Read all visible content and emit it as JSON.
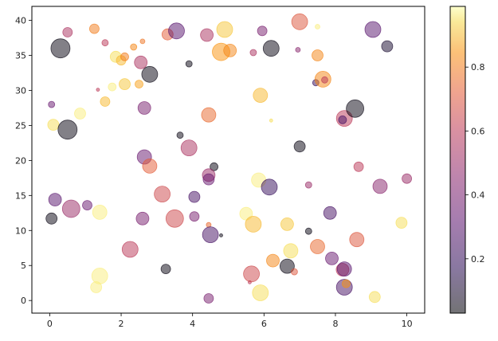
{
  "chart_data": {
    "type": "scatter",
    "title": "",
    "xlabel": "",
    "ylabel": "",
    "xlim": [
      -0.5,
      10.5
    ],
    "ylim": [
      -1.8,
      42.0
    ],
    "xticks": [
      0,
      2,
      4,
      6,
      8,
      10
    ],
    "yticks": [
      0,
      5,
      10,
      15,
      20,
      25,
      30,
      35,
      40
    ],
    "colorbar": {
      "colormap": "inferno",
      "range": [
        0.03,
        0.99
      ],
      "ticks": [
        0.2,
        0.4,
        0.6,
        0.8
      ],
      "alpha": 0.5
    },
    "grid": false,
    "points": [
      {
        "x": 0.3,
        "y": 36.0,
        "s": 12,
        "c": 0.05
      },
      {
        "x": 0.5,
        "y": 38.3,
        "s": 6,
        "c": 0.55
      },
      {
        "x": 1.25,
        "y": 38.8,
        "s": 6,
        "c": 0.8
      },
      {
        "x": 1.55,
        "y": 36.8,
        "s": 4,
        "c": 0.6
      },
      {
        "x": 1.85,
        "y": 34.8,
        "s": 7,
        "c": 0.95
      },
      {
        "x": 2.0,
        "y": 34.3,
        "s": 6,
        "c": 0.9
      },
      {
        "x": 2.1,
        "y": 34.8,
        "s": 5,
        "c": 0.8
      },
      {
        "x": 2.35,
        "y": 36.2,
        "s": 4,
        "c": 0.82
      },
      {
        "x": 2.55,
        "y": 34.0,
        "s": 8,
        "c": 0.55
      },
      {
        "x": 2.6,
        "y": 37.0,
        "s": 3,
        "c": 0.78
      },
      {
        "x": 2.8,
        "y": 32.3,
        "s": 10,
        "c": 0.05
      },
      {
        "x": 3.3,
        "y": 38.0,
        "s": 7,
        "c": 0.72
      },
      {
        "x": 3.55,
        "y": 38.5,
        "s": 10,
        "c": 0.3
      },
      {
        "x": 3.9,
        "y": 33.8,
        "s": 4,
        "c": 0.05
      },
      {
        "x": 4.4,
        "y": 37.9,
        "s": 8,
        "c": 0.55
      },
      {
        "x": 4.8,
        "y": 35.5,
        "s": 11,
        "c": 0.85
      },
      {
        "x": 4.9,
        "y": 38.7,
        "s": 10,
        "c": 0.92
      },
      {
        "x": 5.05,
        "y": 35.7,
        "s": 8,
        "c": 0.82
      },
      {
        "x": 5.7,
        "y": 35.4,
        "s": 4,
        "c": 0.55
      },
      {
        "x": 5.95,
        "y": 38.5,
        "s": 6,
        "c": 0.4
      },
      {
        "x": 6.2,
        "y": 36.0,
        "s": 10,
        "c": 0.05
      },
      {
        "x": 6.95,
        "y": 35.8,
        "s": 3,
        "c": 0.45
      },
      {
        "x": 7.0,
        "y": 39.8,
        "s": 10,
        "c": 0.7
      },
      {
        "x": 7.5,
        "y": 39.1,
        "s": 3,
        "c": 0.97
      },
      {
        "x": 7.5,
        "y": 35.0,
        "s": 7,
        "c": 0.82
      },
      {
        "x": 7.45,
        "y": 31.1,
        "s": 4,
        "c": 0.2
      },
      {
        "x": 7.65,
        "y": 31.6,
        "s": 10,
        "c": 0.82
      },
      {
        "x": 7.7,
        "y": 31.5,
        "s": 4,
        "c": 0.6
      },
      {
        "x": 9.05,
        "y": 38.7,
        "s": 10,
        "c": 0.3
      },
      {
        "x": 9.45,
        "y": 36.3,
        "s": 7,
        "c": 0.1
      },
      {
        "x": 0.05,
        "y": 28.0,
        "s": 4,
        "c": 0.35
      },
      {
        "x": 0.1,
        "y": 25.1,
        "s": 7,
        "c": 0.95
      },
      {
        "x": 0.5,
        "y": 24.4,
        "s": 12,
        "c": 0.05
      },
      {
        "x": 0.85,
        "y": 26.7,
        "s": 7,
        "c": 0.97
      },
      {
        "x": 1.35,
        "y": 30.1,
        "s": 2,
        "c": 0.6
      },
      {
        "x": 1.55,
        "y": 28.4,
        "s": 6,
        "c": 0.9
      },
      {
        "x": 1.75,
        "y": 30.5,
        "s": 5,
        "c": 0.97
      },
      {
        "x": 2.1,
        "y": 30.9,
        "s": 7,
        "c": 0.92
      },
      {
        "x": 2.5,
        "y": 30.9,
        "s": 5,
        "c": 0.87
      },
      {
        "x": 2.65,
        "y": 27.5,
        "s": 8,
        "c": 0.4
      },
      {
        "x": 4.45,
        "y": 26.5,
        "s": 9,
        "c": 0.75
      },
      {
        "x": 3.65,
        "y": 23.6,
        "s": 4,
        "c": 0.05
      },
      {
        "x": 5.9,
        "y": 29.3,
        "s": 9,
        "c": 0.9
      },
      {
        "x": 6.2,
        "y": 25.7,
        "s": 2,
        "c": 0.95
      },
      {
        "x": 8.25,
        "y": 26.0,
        "s": 10,
        "c": 0.6
      },
      {
        "x": 8.2,
        "y": 25.8,
        "s": 5,
        "c": 0.25
      },
      {
        "x": 8.55,
        "y": 27.4,
        "s": 11,
        "c": 0.05
      },
      {
        "x": 2.65,
        "y": 20.5,
        "s": 9,
        "c": 0.35
      },
      {
        "x": 2.8,
        "y": 19.2,
        "s": 9,
        "c": 0.72
      },
      {
        "x": 3.9,
        "y": 21.8,
        "s": 10,
        "c": 0.55
      },
      {
        "x": 4.6,
        "y": 19.1,
        "s": 5,
        "c": 0.05
      },
      {
        "x": 4.45,
        "y": 17.9,
        "s": 8,
        "c": 0.5
      },
      {
        "x": 4.45,
        "y": 17.3,
        "s": 7,
        "c": 0.35
      },
      {
        "x": 5.85,
        "y": 17.2,
        "s": 9,
        "c": 0.97
      },
      {
        "x": 6.15,
        "y": 16.2,
        "s": 10,
        "c": 0.2
      },
      {
        "x": 7.0,
        "y": 22.0,
        "s": 7,
        "c": 0.05
      },
      {
        "x": 7.25,
        "y": 16.5,
        "s": 4,
        "c": 0.5
      },
      {
        "x": 8.65,
        "y": 19.1,
        "s": 6,
        "c": 0.6
      },
      {
        "x": 9.25,
        "y": 16.3,
        "s": 9,
        "c": 0.45
      },
      {
        "x": 10.0,
        "y": 17.4,
        "s": 6,
        "c": 0.5
      },
      {
        "x": 0.05,
        "y": 11.7,
        "s": 7,
        "c": 0.05
      },
      {
        "x": 0.15,
        "y": 14.4,
        "s": 8,
        "c": 0.3
      },
      {
        "x": 0.6,
        "y": 13.1,
        "s": 11,
        "c": 0.5
      },
      {
        "x": 1.05,
        "y": 13.6,
        "s": 6,
        "c": 0.35
      },
      {
        "x": 1.4,
        "y": 12.6,
        "s": 9,
        "c": 0.97
      },
      {
        "x": 2.6,
        "y": 11.7,
        "s": 8,
        "c": 0.4
      },
      {
        "x": 3.15,
        "y": 15.2,
        "s": 10,
        "c": 0.65
      },
      {
        "x": 3.5,
        "y": 11.7,
        "s": 11,
        "c": 0.65
      },
      {
        "x": 4.05,
        "y": 14.8,
        "s": 7,
        "c": 0.25
      },
      {
        "x": 4.05,
        "y": 12.0,
        "s": 6,
        "c": 0.4
      },
      {
        "x": 4.45,
        "y": 10.8,
        "s": 3,
        "c": 0.75
      },
      {
        "x": 4.5,
        "y": 9.4,
        "s": 10,
        "c": 0.25
      },
      {
        "x": 4.8,
        "y": 9.3,
        "s": 2,
        "c": 0.05
      },
      {
        "x": 5.5,
        "y": 12.4,
        "s": 8,
        "c": 0.97
      },
      {
        "x": 5.7,
        "y": 10.9,
        "s": 10,
        "c": 0.9
      },
      {
        "x": 6.65,
        "y": 10.9,
        "s": 8,
        "c": 0.92
      },
      {
        "x": 7.25,
        "y": 9.9,
        "s": 4,
        "c": 0.05
      },
      {
        "x": 7.85,
        "y": 12.5,
        "s": 8,
        "c": 0.25
      },
      {
        "x": 9.85,
        "y": 11.1,
        "s": 7,
        "c": 0.95
      },
      {
        "x": 1.3,
        "y": 1.9,
        "s": 7,
        "c": 0.97
      },
      {
        "x": 1.4,
        "y": 3.5,
        "s": 10,
        "c": 0.97
      },
      {
        "x": 2.25,
        "y": 7.3,
        "s": 10,
        "c": 0.6
      },
      {
        "x": 3.25,
        "y": 4.5,
        "s": 6,
        "c": 0.05
      },
      {
        "x": 4.45,
        "y": 0.3,
        "s": 6,
        "c": 0.4
      },
      {
        "x": 5.6,
        "y": 2.6,
        "s": 2,
        "c": 0.6
      },
      {
        "x": 5.65,
        "y": 3.8,
        "s": 10,
        "c": 0.65
      },
      {
        "x": 5.9,
        "y": 1.1,
        "s": 10,
        "c": 0.95
      },
      {
        "x": 6.25,
        "y": 5.7,
        "s": 8,
        "c": 0.82
      },
      {
        "x": 6.65,
        "y": 4.9,
        "s": 9,
        "c": 0.05
      },
      {
        "x": 6.75,
        "y": 7.1,
        "s": 9,
        "c": 0.95
      },
      {
        "x": 6.85,
        "y": 4.1,
        "s": 4,
        "c": 0.7
      },
      {
        "x": 7.5,
        "y": 7.7,
        "s": 9,
        "c": 0.75
      },
      {
        "x": 7.9,
        "y": 6.0,
        "s": 8,
        "c": 0.35
      },
      {
        "x": 8.2,
        "y": 4.4,
        "s": 8,
        "c": 0.6
      },
      {
        "x": 8.25,
        "y": 4.5,
        "s": 9,
        "c": 0.3
      },
      {
        "x": 8.25,
        "y": 1.9,
        "s": 10,
        "c": 0.25
      },
      {
        "x": 8.3,
        "y": 2.4,
        "s": 5,
        "c": 0.85
      },
      {
        "x": 8.6,
        "y": 8.7,
        "s": 9,
        "c": 0.7
      },
      {
        "x": 9.1,
        "y": 0.5,
        "s": 7,
        "c": 0.95
      }
    ]
  }
}
